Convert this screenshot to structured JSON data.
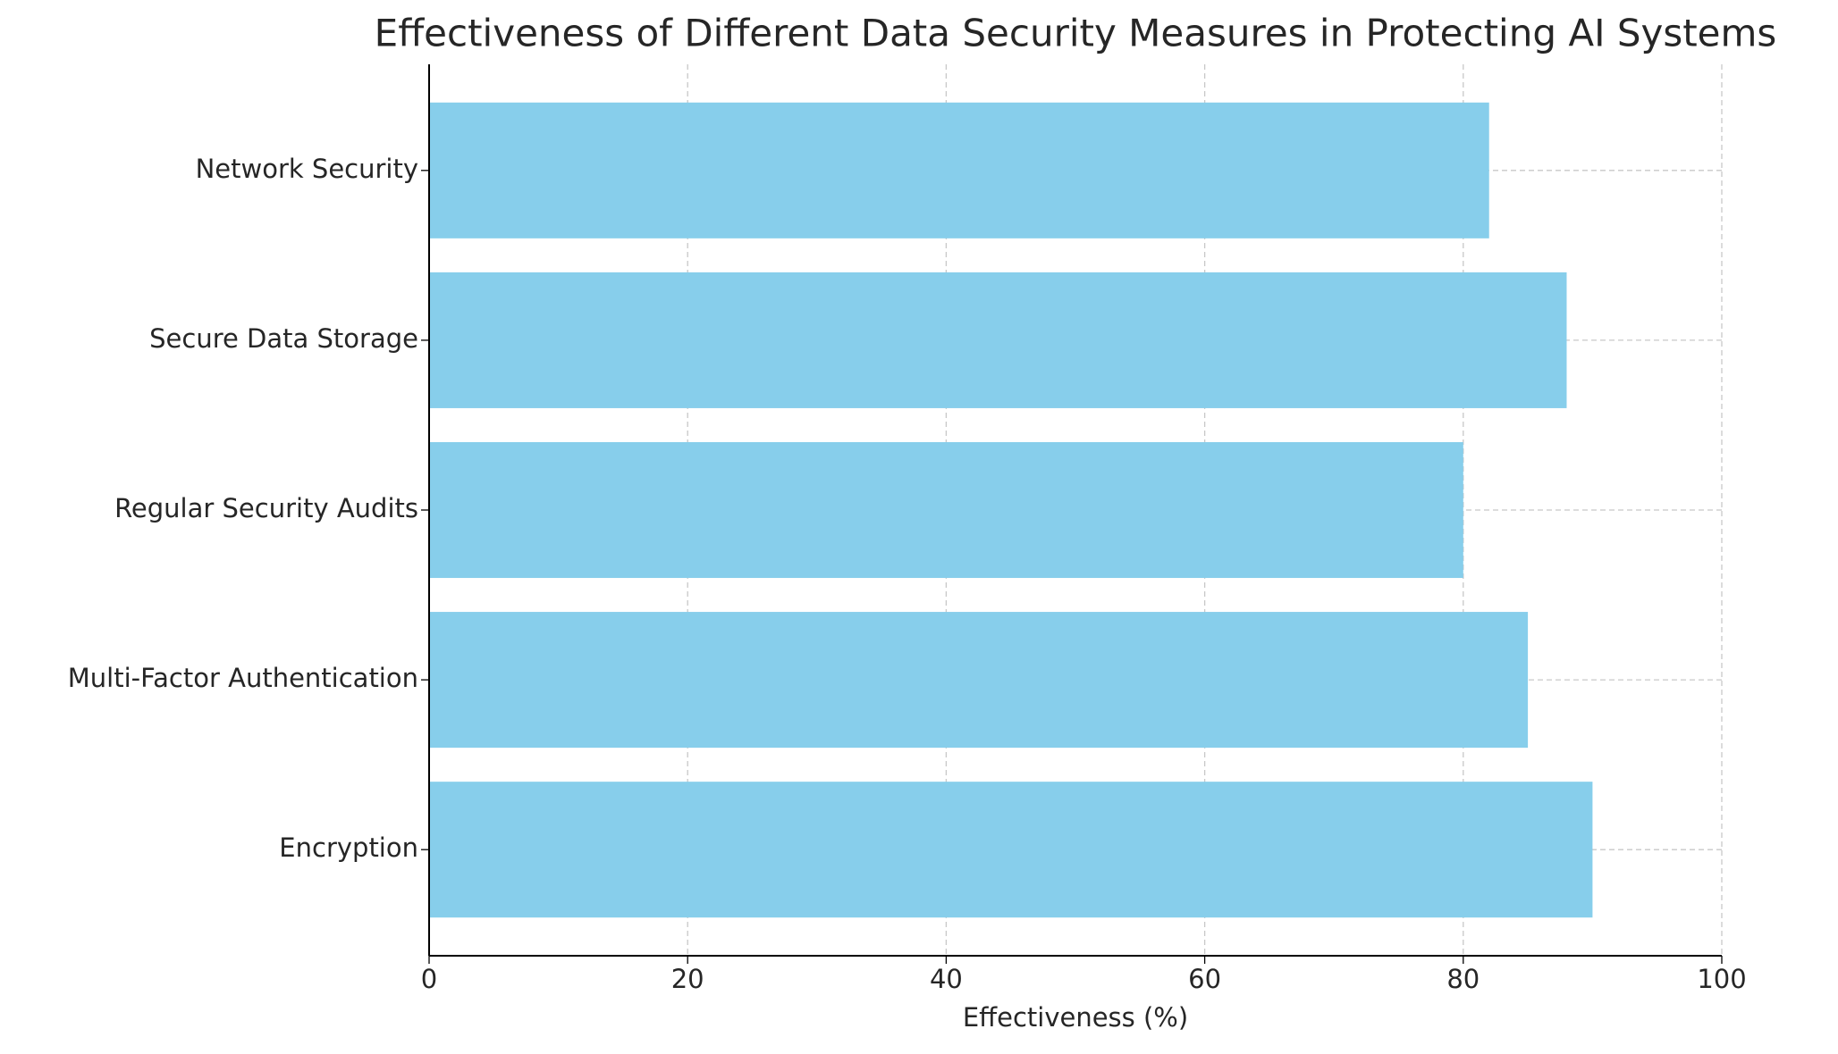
{
  "chart_data": {
    "type": "hbar",
    "title": "Effectiveness of Different Data Security Measures in Protecting AI Systems",
    "xlabel": "Effectiveness (%)",
    "categories": [
      "Encryption",
      "Multi-Factor Authentication",
      "Regular Security Audits",
      "Secure Data Storage",
      "Network Security"
    ],
    "values": [
      90,
      85,
      80,
      88,
      82
    ],
    "color": "#87ceeb",
    "xlim": [
      0,
      100
    ],
    "xticks": [
      0,
      20,
      40,
      60,
      80,
      100
    ],
    "grid": true
  }
}
